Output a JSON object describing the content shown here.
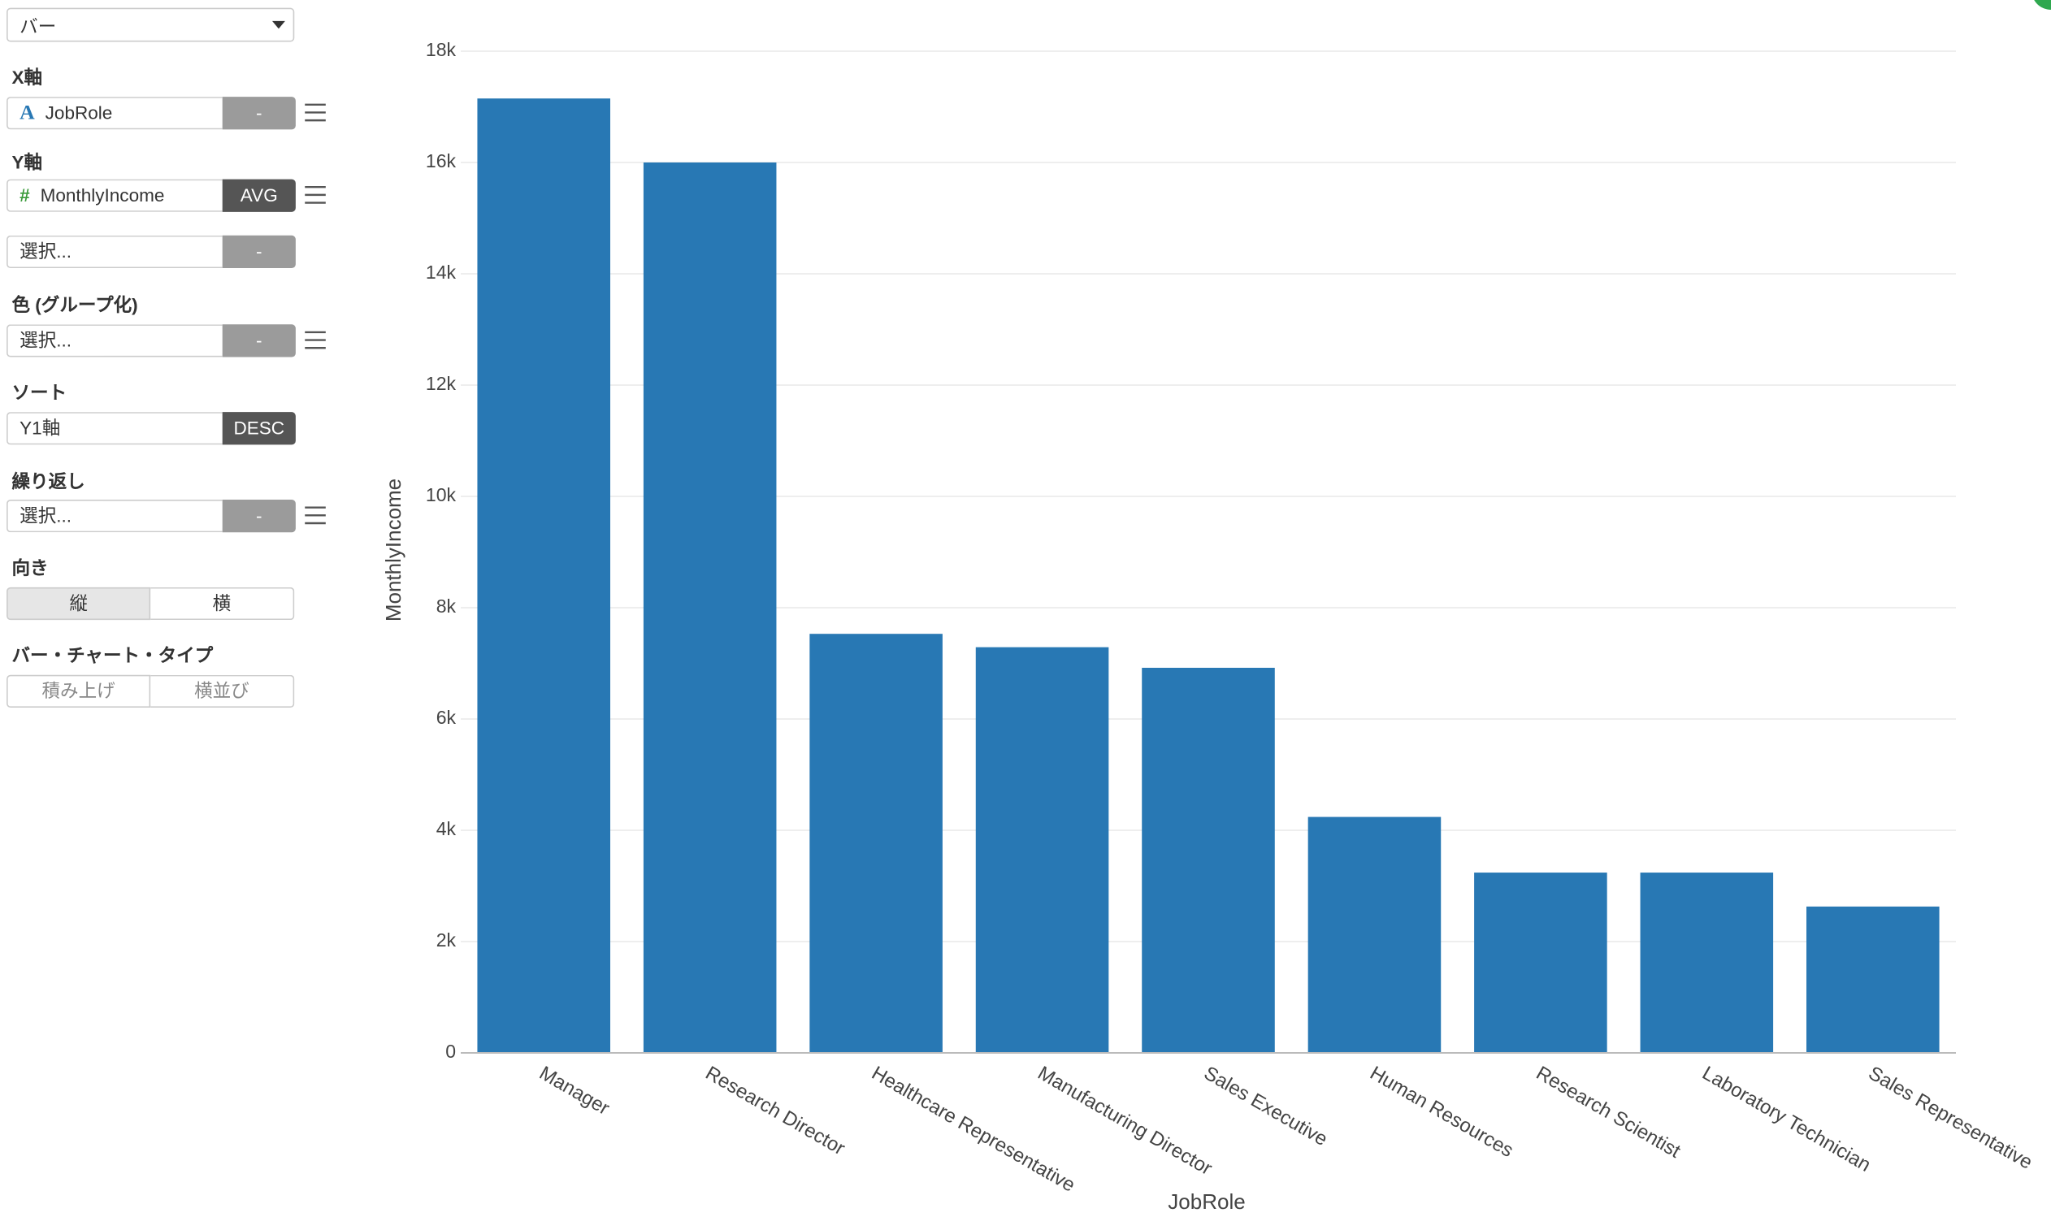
{
  "sidebar": {
    "chart_type": "バー",
    "x_axis": {
      "label": "X軸",
      "icon": "A",
      "field": "JobRole",
      "aggregate": "-"
    },
    "y_axis": {
      "label": "Y軸",
      "icon": "#",
      "field": "MonthlyIncome",
      "aggregate": "AVG"
    },
    "y_axis_2": {
      "field": "選択...",
      "aggregate": "-"
    },
    "color": {
      "label": "色 (グループ化)",
      "field": "選択...",
      "aggregate": "-"
    },
    "sort": {
      "label": "ソート",
      "field": "Y1軸",
      "order": "DESC"
    },
    "repeat": {
      "label": "繰り返し",
      "field": "選択...",
      "aggregate": "-"
    },
    "orientation": {
      "label": "向き",
      "options": [
        "縦",
        "横"
      ]
    },
    "bar_type": {
      "label": "バー・チャート・タイプ",
      "options": [
        "積み上げ",
        "横並び"
      ]
    }
  },
  "chart_data": {
    "type": "bar",
    "x_label": "JobRole",
    "y_label": "MonthlyIncome",
    "categories": [
      "Manager",
      "Research Director",
      "Healthcare Representative",
      "Manufacturing Director",
      "Sales Executive",
      "Human Resources",
      "Research Scientist",
      "Laboratory Technician",
      "Sales Representative"
    ],
    "values": [
      17150,
      16000,
      7530,
      7290,
      6920,
      4240,
      3240,
      3240,
      2630
    ],
    "color": "#2878b4",
    "ylim": [
      0,
      18000
    ],
    "yticks": [
      0,
      {
        "value": 2000,
        "label": "2k"
      },
      {
        "value": 4000,
        "label": "4k"
      },
      {
        "value": 6000,
        "label": "6k"
      },
      {
        "value": 8000,
        "label": "8k"
      },
      {
        "value": 10000,
        "label": "10k"
      },
      {
        "value": 12000,
        "label": "12k"
      },
      {
        "value": 14000,
        "label": "14k"
      },
      {
        "value": 16000,
        "label": "16k"
      },
      {
        "value": 18000,
        "label": "18k"
      }
    ],
    "grid": true
  }
}
